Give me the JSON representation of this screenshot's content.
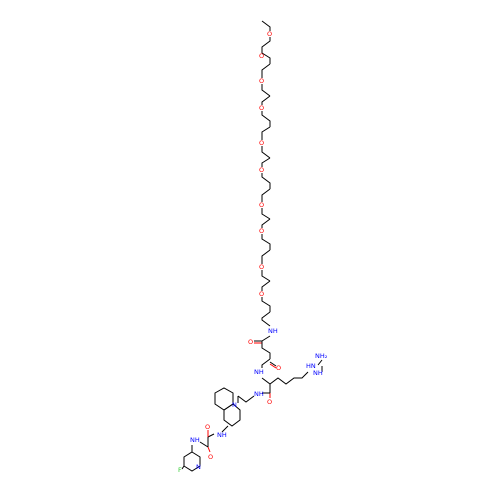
{
  "atom_colors": {
    "oxygen": "#ff0000",
    "nitrogen": "#0000ff",
    "fluorine": "#33cc33",
    "carbon": "#000000"
  },
  "labels": {
    "o_ether": "O",
    "o_carbonyl": "O",
    "nh": "NH",
    "hn": "HN",
    "nh2": "NH₂",
    "nh_imine": "NH",
    "n": "N",
    "f": "F"
  }
}
